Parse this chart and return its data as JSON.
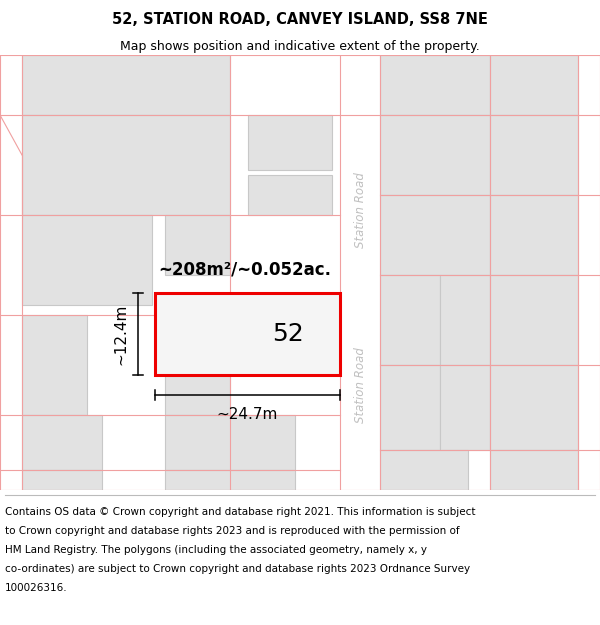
{
  "title_line1": "52, STATION ROAD, CANVEY ISLAND, SS8 7NE",
  "title_line2": "Map shows position and indicative extent of the property.",
  "area_label": "~208m²/~0.052ac.",
  "width_label": "~24.7m",
  "height_label": "~12.4m",
  "property_number": "52",
  "bg_color": "#f2f2f2",
  "building_color": "#e2e2e2",
  "building_stroke": "#c8c8c8",
  "highlight_color": "#ee0000",
  "road_label_color": "#c0c0c0",
  "pink_line_color": "#f0a0a0",
  "title_fontsize": 10.5,
  "subtitle_fontsize": 9,
  "footer_fontsize": 7.5,
  "footer_lines": [
    "Contains OS data © Crown copyright and database right 2021. This information is subject",
    "to Crown copyright and database rights 2023 and is reproduced with the permission of",
    "HM Land Registry. The polygons (including the associated geometry, namely x, y",
    "co-ordinates) are subject to Crown copyright and database rights 2023 Ordnance Survey",
    "100026316."
  ]
}
